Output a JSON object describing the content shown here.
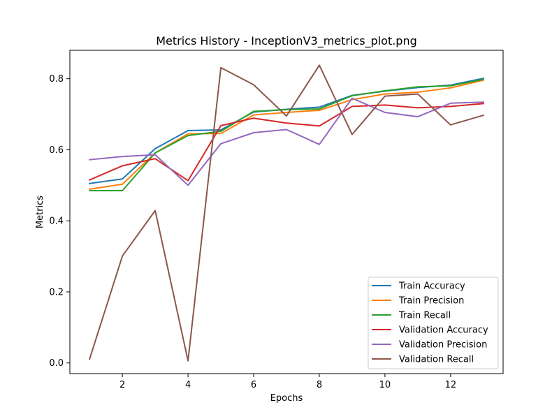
{
  "chart_data": {
    "type": "line",
    "title": "Metrics History - InceptionV3_metrics_plot.png",
    "xlabel": "Epochs",
    "ylabel": "Metrics",
    "x": [
      1,
      2,
      3,
      4,
      5,
      6,
      7,
      8,
      9,
      10,
      11,
      12,
      13
    ],
    "xlim": [
      0.4,
      13.6
    ],
    "ylim": [
      -0.03,
      0.88
    ],
    "xticks": [
      2,
      4,
      6,
      8,
      10,
      12
    ],
    "yticks": [
      0.0,
      0.2,
      0.4,
      0.6,
      0.8
    ],
    "ytick_labels": [
      "0.0",
      "0.2",
      "0.4",
      "0.6",
      "0.8"
    ],
    "grid": false,
    "legend_position": "bottom-right",
    "series": [
      {
        "name": "Train Accuracy",
        "color": "#1f77b4",
        "values": [
          0.505,
          0.518,
          0.603,
          0.654,
          0.656,
          0.706,
          0.714,
          0.72,
          0.753,
          0.765,
          0.775,
          0.782,
          0.801
        ]
      },
      {
        "name": "Train Precision",
        "color": "#ff7f0e",
        "values": [
          0.489,
          0.503,
          0.591,
          0.645,
          0.646,
          0.698,
          0.705,
          0.711,
          0.741,
          0.757,
          0.762,
          0.774,
          0.796
        ]
      },
      {
        "name": "Train Recall",
        "color": "#2ca02c",
        "values": [
          0.485,
          0.485,
          0.591,
          0.64,
          0.652,
          0.708,
          0.713,
          0.715,
          0.752,
          0.766,
          0.777,
          0.78,
          0.798
        ]
      },
      {
        "name": "Validation Accuracy",
        "color": "#d62728",
        "values": [
          0.515,
          0.555,
          0.575,
          0.513,
          0.668,
          0.689,
          0.675,
          0.667,
          0.722,
          0.726,
          0.718,
          0.722,
          0.73
        ]
      },
      {
        "name": "Validation Precision",
        "color": "#9467bd",
        "values": [
          0.572,
          0.581,
          0.586,
          0.5,
          0.617,
          0.648,
          0.657,
          0.615,
          0.745,
          0.705,
          0.693,
          0.731,
          0.734
        ]
      },
      {
        "name": "Validation Recall",
        "color": "#8c564b",
        "values": [
          0.011,
          0.301,
          0.429,
          0.006,
          0.831,
          0.783,
          0.695,
          0.838,
          0.643,
          0.751,
          0.757,
          0.67,
          0.697
        ]
      }
    ]
  }
}
